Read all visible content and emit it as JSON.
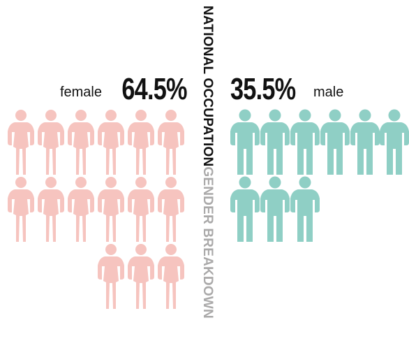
{
  "title": {
    "main": "NATIONAL OCCUPATION",
    "sub": "GENDER BREAKDOWN"
  },
  "chart_data": {
    "type": "pictogram",
    "series": [
      {
        "name": "female",
        "percent_label": "64.5%",
        "value": 64.5,
        "icon_count": 15,
        "color": "#f6c4bf",
        "icon": "female-person-icon"
      },
      {
        "name": "male",
        "percent_label": "35.5%",
        "value": 35.5,
        "icon_count": 9,
        "color": "#8fcfc5",
        "icon": "male-person-icon"
      }
    ]
  }
}
